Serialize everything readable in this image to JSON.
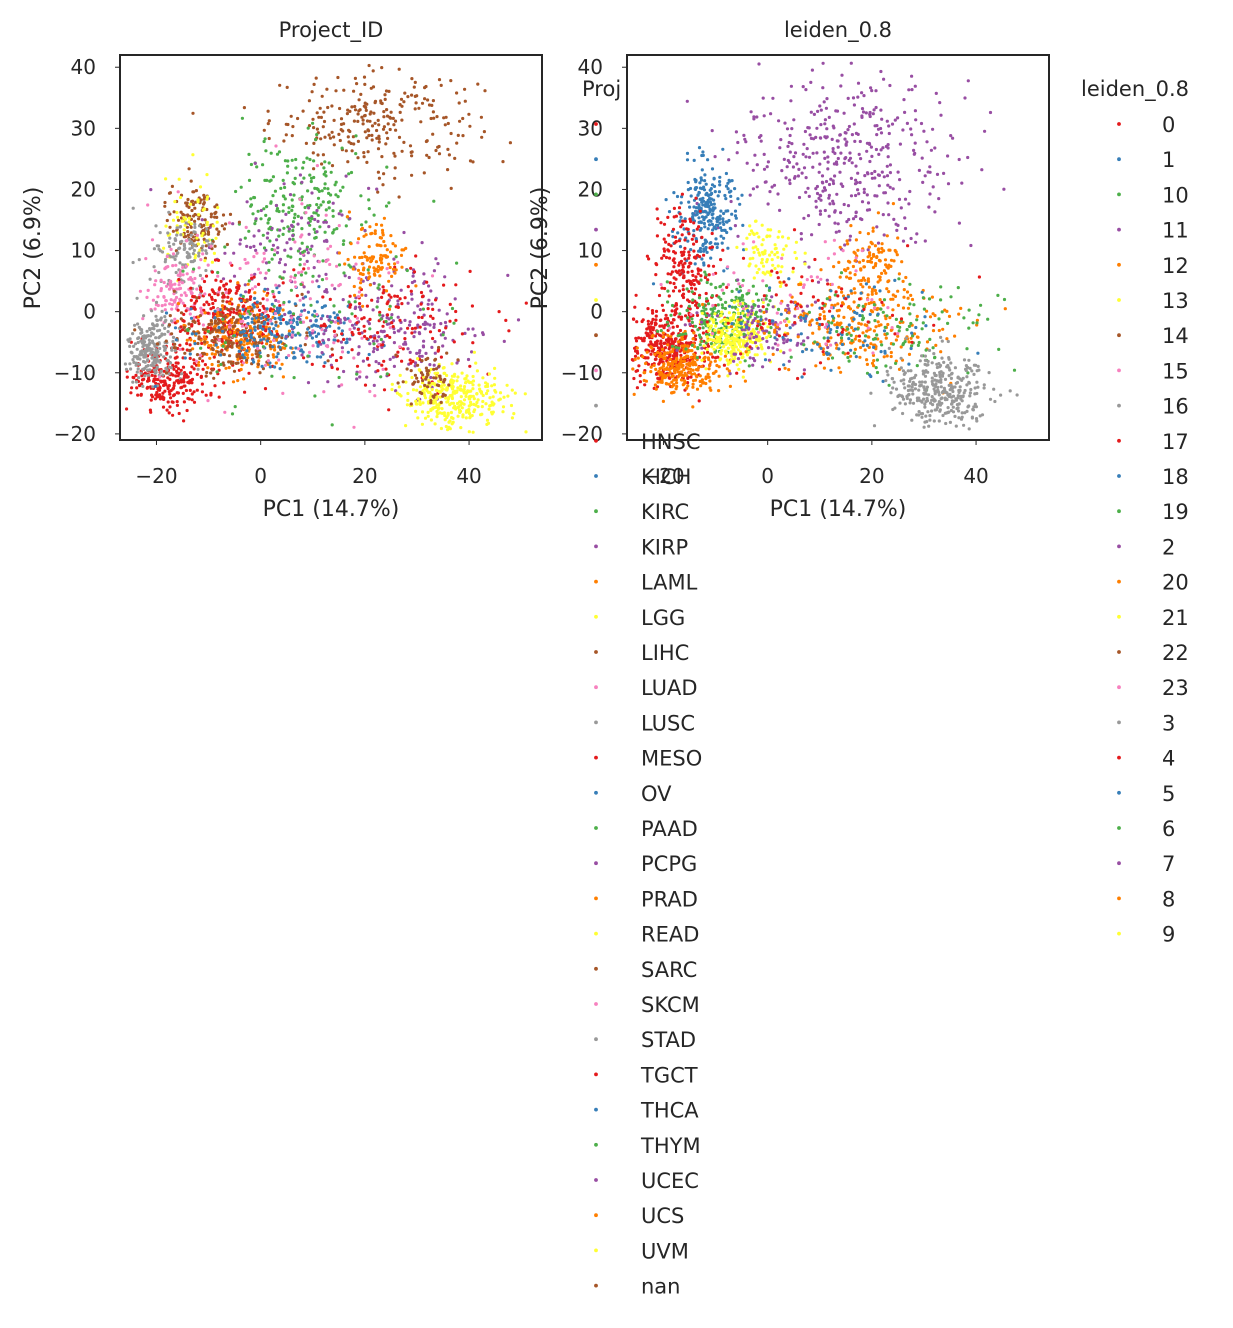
{
  "chart_data": [
    {
      "type": "scatter",
      "title": "Project_ID",
      "xlabel": "PC1 (14.7%)",
      "ylabel": "PC2 (6.9%)",
      "xlim": [
        -27,
        54
      ],
      "ylim": [
        -21,
        42
      ],
      "xticks": [
        -20,
        0,
        20,
        40
      ],
      "yticks": [
        -20,
        -10,
        0,
        10,
        20,
        30,
        40
      ],
      "xtick_labels": [
        "−20",
        "0",
        "20",
        "40"
      ],
      "ytick_labels": [
        "−20",
        "−10",
        "0",
        "10",
        "20",
        "30",
        "40"
      ],
      "grid": false,
      "legend_title": "Proj",
      "legend_position": "right, overlapping second panel",
      "legend_entries": [
        {
          "label": "",
          "color": "#e41a1c"
        },
        {
          "label": "",
          "color": "#377eb8"
        },
        {
          "label": "",
          "color": "#4daf4a"
        },
        {
          "label": "",
          "color": "#984ea3"
        },
        {
          "label": "",
          "color": "#ff7f00"
        },
        {
          "label": "",
          "color": "#ffff33"
        },
        {
          "label": "",
          "color": "#a65628"
        },
        {
          "label": "",
          "color": "#f781bf"
        },
        {
          "label": "",
          "color": "#999999"
        },
        {
          "label": "HNSC",
          "color": "#e41a1c"
        },
        {
          "label": "KICH",
          "color": "#377eb8"
        },
        {
          "label": "KIRC",
          "color": "#4daf4a"
        },
        {
          "label": "KIRP",
          "color": "#984ea3"
        },
        {
          "label": "LAML",
          "color": "#ff7f00"
        },
        {
          "label": "LGG",
          "color": "#ffff33"
        },
        {
          "label": "LIHC",
          "color": "#a65628"
        },
        {
          "label": "LUAD",
          "color": "#f781bf"
        },
        {
          "label": "LUSC",
          "color": "#999999"
        },
        {
          "label": "MESO",
          "color": "#e41a1c"
        },
        {
          "label": "OV",
          "color": "#377eb8"
        },
        {
          "label": "PAAD",
          "color": "#4daf4a"
        },
        {
          "label": "PCPG",
          "color": "#984ea3"
        },
        {
          "label": "PRAD",
          "color": "#ff7f00"
        },
        {
          "label": "READ",
          "color": "#ffff33"
        },
        {
          "label": "SARC",
          "color": "#a65628"
        },
        {
          "label": "SKCM",
          "color": "#f781bf"
        },
        {
          "label": "STAD",
          "color": "#999999"
        },
        {
          "label": "TGCT",
          "color": "#e41a1c"
        },
        {
          "label": "THCA",
          "color": "#377eb8"
        },
        {
          "label": "THYM",
          "color": "#4daf4a"
        },
        {
          "label": "UCEC",
          "color": "#984ea3"
        },
        {
          "label": "UCS",
          "color": "#ff7f00"
        },
        {
          "label": "UVM",
          "color": "#ffff33"
        },
        {
          "label": "nan",
          "color": "#a65628"
        }
      ],
      "clusters": [
        {
          "color": "#a65628",
          "cx": 22,
          "cy": 31,
          "sx": 10,
          "sy": 4,
          "n": 260
        },
        {
          "color": "#4daf4a",
          "cx": 8,
          "cy": 18,
          "sx": 6,
          "sy": 5,
          "n": 200
        },
        {
          "color": "#984ea3",
          "cx": 5,
          "cy": 12,
          "sx": 9,
          "sy": 6,
          "n": 120
        },
        {
          "color": "#a65628",
          "cx": -12,
          "cy": 15,
          "sx": 3,
          "sy": 3,
          "n": 130
        },
        {
          "color": "#ffff33",
          "cx": -13,
          "cy": 13,
          "sx": 3,
          "sy": 4,
          "n": 60
        },
        {
          "color": "#999999",
          "cx": -15,
          "cy": 9,
          "sx": 3,
          "sy": 3,
          "n": 110
        },
        {
          "color": "#f781bf",
          "cx": -16,
          "cy": 3,
          "sx": 3,
          "sy": 3,
          "n": 110
        },
        {
          "color": "#e41a1c",
          "cx": -18,
          "cy": -11,
          "sx": 4,
          "sy": 2.5,
          "n": 240
        },
        {
          "color": "#999999",
          "cx": -21,
          "cy": -6,
          "sx": 2.5,
          "sy": 2.5,
          "n": 220
        },
        {
          "color": "#e41a1c",
          "cx": -6,
          "cy": -1,
          "sx": 5,
          "sy": 4,
          "n": 260
        },
        {
          "color": "#ff7f00",
          "cx": -4,
          "cy": -4,
          "sx": 5,
          "sy": 3,
          "n": 220
        },
        {
          "color": "#a65628",
          "cx": -6,
          "cy": -4,
          "sx": 6,
          "sy": 3,
          "n": 200
        },
        {
          "color": "#377eb8",
          "cx": 5,
          "cy": -3,
          "sx": 8,
          "sy": 3,
          "n": 220
        },
        {
          "color": "#984ea3",
          "cx": 25,
          "cy": -3,
          "sx": 9,
          "sy": 5,
          "n": 220
        },
        {
          "color": "#e41a1c",
          "cx": 25,
          "cy": -3,
          "sx": 9,
          "sy": 5,
          "n": 150
        },
        {
          "color": "#ff7f00",
          "cx": 22,
          "cy": 9,
          "sx": 3,
          "sy": 2.5,
          "n": 110
        },
        {
          "color": "#ffff33",
          "cx": 37,
          "cy": -14,
          "sx": 5,
          "sy": 2.5,
          "n": 330
        },
        {
          "color": "#a65628",
          "cx": 32,
          "cy": -11,
          "sx": 3,
          "sy": 2,
          "n": 60
        },
        {
          "color": "#f781bf",
          "cx": 5,
          "cy": 3,
          "sx": 12,
          "sy": 8,
          "n": 150
        },
        {
          "color": "#4daf4a",
          "cx": 10,
          "cy": 0,
          "sx": 12,
          "sy": 7,
          "n": 90
        }
      ]
    },
    {
      "type": "scatter",
      "title": "leiden_0.8",
      "xlabel": "PC1 (14.7%)",
      "ylabel": "PC2 (6.9%)",
      "xlim": [
        -27,
        54
      ],
      "ylim": [
        -21,
        42
      ],
      "xticks": [
        -20,
        0,
        20,
        40
      ],
      "yticks": [
        -20,
        -10,
        0,
        10,
        20,
        30,
        40
      ],
      "xtick_labels": [
        "−20",
        "0",
        "20",
        "40"
      ],
      "ytick_labels": [
        "−20",
        "−10",
        "0",
        "10",
        "20",
        "30",
        "40"
      ],
      "grid": false,
      "legend_title": "leiden_0.8",
      "legend_position": "right",
      "legend_entries": [
        {
          "label": "0",
          "color": "#e41a1c"
        },
        {
          "label": "1",
          "color": "#377eb8"
        },
        {
          "label": "10",
          "color": "#4daf4a"
        },
        {
          "label": "11",
          "color": "#984ea3"
        },
        {
          "label": "12",
          "color": "#ff7f00"
        },
        {
          "label": "13",
          "color": "#ffff33"
        },
        {
          "label": "14",
          "color": "#a65628"
        },
        {
          "label": "15",
          "color": "#f781bf"
        },
        {
          "label": "16",
          "color": "#999999"
        },
        {
          "label": "17",
          "color": "#e41a1c"
        },
        {
          "label": "18",
          "color": "#377eb8"
        },
        {
          "label": "19",
          "color": "#4daf4a"
        },
        {
          "label": "2",
          "color": "#984ea3"
        },
        {
          "label": "20",
          "color": "#ff7f00"
        },
        {
          "label": "21",
          "color": "#ffff33"
        },
        {
          "label": "22",
          "color": "#a65628"
        },
        {
          "label": "23",
          "color": "#f781bf"
        },
        {
          "label": "3",
          "color": "#999999"
        },
        {
          "label": "4",
          "color": "#e41a1c"
        },
        {
          "label": "5",
          "color": "#377eb8"
        },
        {
          "label": "6",
          "color": "#4daf4a"
        },
        {
          "label": "7",
          "color": "#984ea3"
        },
        {
          "label": "8",
          "color": "#ff7f00"
        },
        {
          "label": "9",
          "color": "#ffff33"
        }
      ],
      "clusters": [
        {
          "color": "#984ea3",
          "cx": 15,
          "cy": 25,
          "sx": 10,
          "sy": 7,
          "n": 420
        },
        {
          "color": "#377eb8",
          "cx": -12,
          "cy": 16,
          "sx": 3,
          "sy": 4,
          "n": 260
        },
        {
          "color": "#e41a1c",
          "cx": -16,
          "cy": 7,
          "sx": 3,
          "sy": 5,
          "n": 200
        },
        {
          "color": "#ffff33",
          "cx": 0,
          "cy": 10,
          "sx": 3,
          "sy": 2.5,
          "n": 80
        },
        {
          "color": "#ff7f00",
          "cx": 20,
          "cy": 8,
          "sx": 3,
          "sy": 3,
          "n": 110
        },
        {
          "color": "#e41a1c",
          "cx": -19,
          "cy": -6,
          "sx": 4,
          "sy": 3,
          "n": 360
        },
        {
          "color": "#ff7f00",
          "cx": -17,
          "cy": -9,
          "sx": 4,
          "sy": 2.5,
          "n": 260
        },
        {
          "color": "#4daf4a",
          "cx": -8,
          "cy": -1,
          "sx": 5,
          "sy": 3,
          "n": 240
        },
        {
          "color": "#ffff33",
          "cx": -6,
          "cy": -4,
          "sx": 3.5,
          "sy": 2.5,
          "n": 260
        },
        {
          "color": "#984ea3",
          "cx": 0,
          "cy": -3,
          "sx": 6,
          "sy": 3,
          "n": 110
        },
        {
          "color": "#ff7f00",
          "cx": 18,
          "cy": -2,
          "sx": 10,
          "sy": 4,
          "n": 260
        },
        {
          "color": "#4daf4a",
          "cx": 24,
          "cy": -3,
          "sx": 10,
          "sy": 4,
          "n": 110
        },
        {
          "color": "#377eb8",
          "cx": 12,
          "cy": -3,
          "sx": 10,
          "sy": 4,
          "n": 90
        },
        {
          "color": "#999999",
          "cx": 33,
          "cy": -13,
          "sx": 5,
          "sy": 3,
          "n": 330
        },
        {
          "color": "#e41a1c",
          "cx": 8,
          "cy": 0,
          "sx": 10,
          "sy": 5,
          "n": 70
        },
        {
          "color": "#f781bf",
          "cx": 5,
          "cy": 2,
          "sx": 10,
          "sy": 5,
          "n": 60
        }
      ]
    }
  ]
}
